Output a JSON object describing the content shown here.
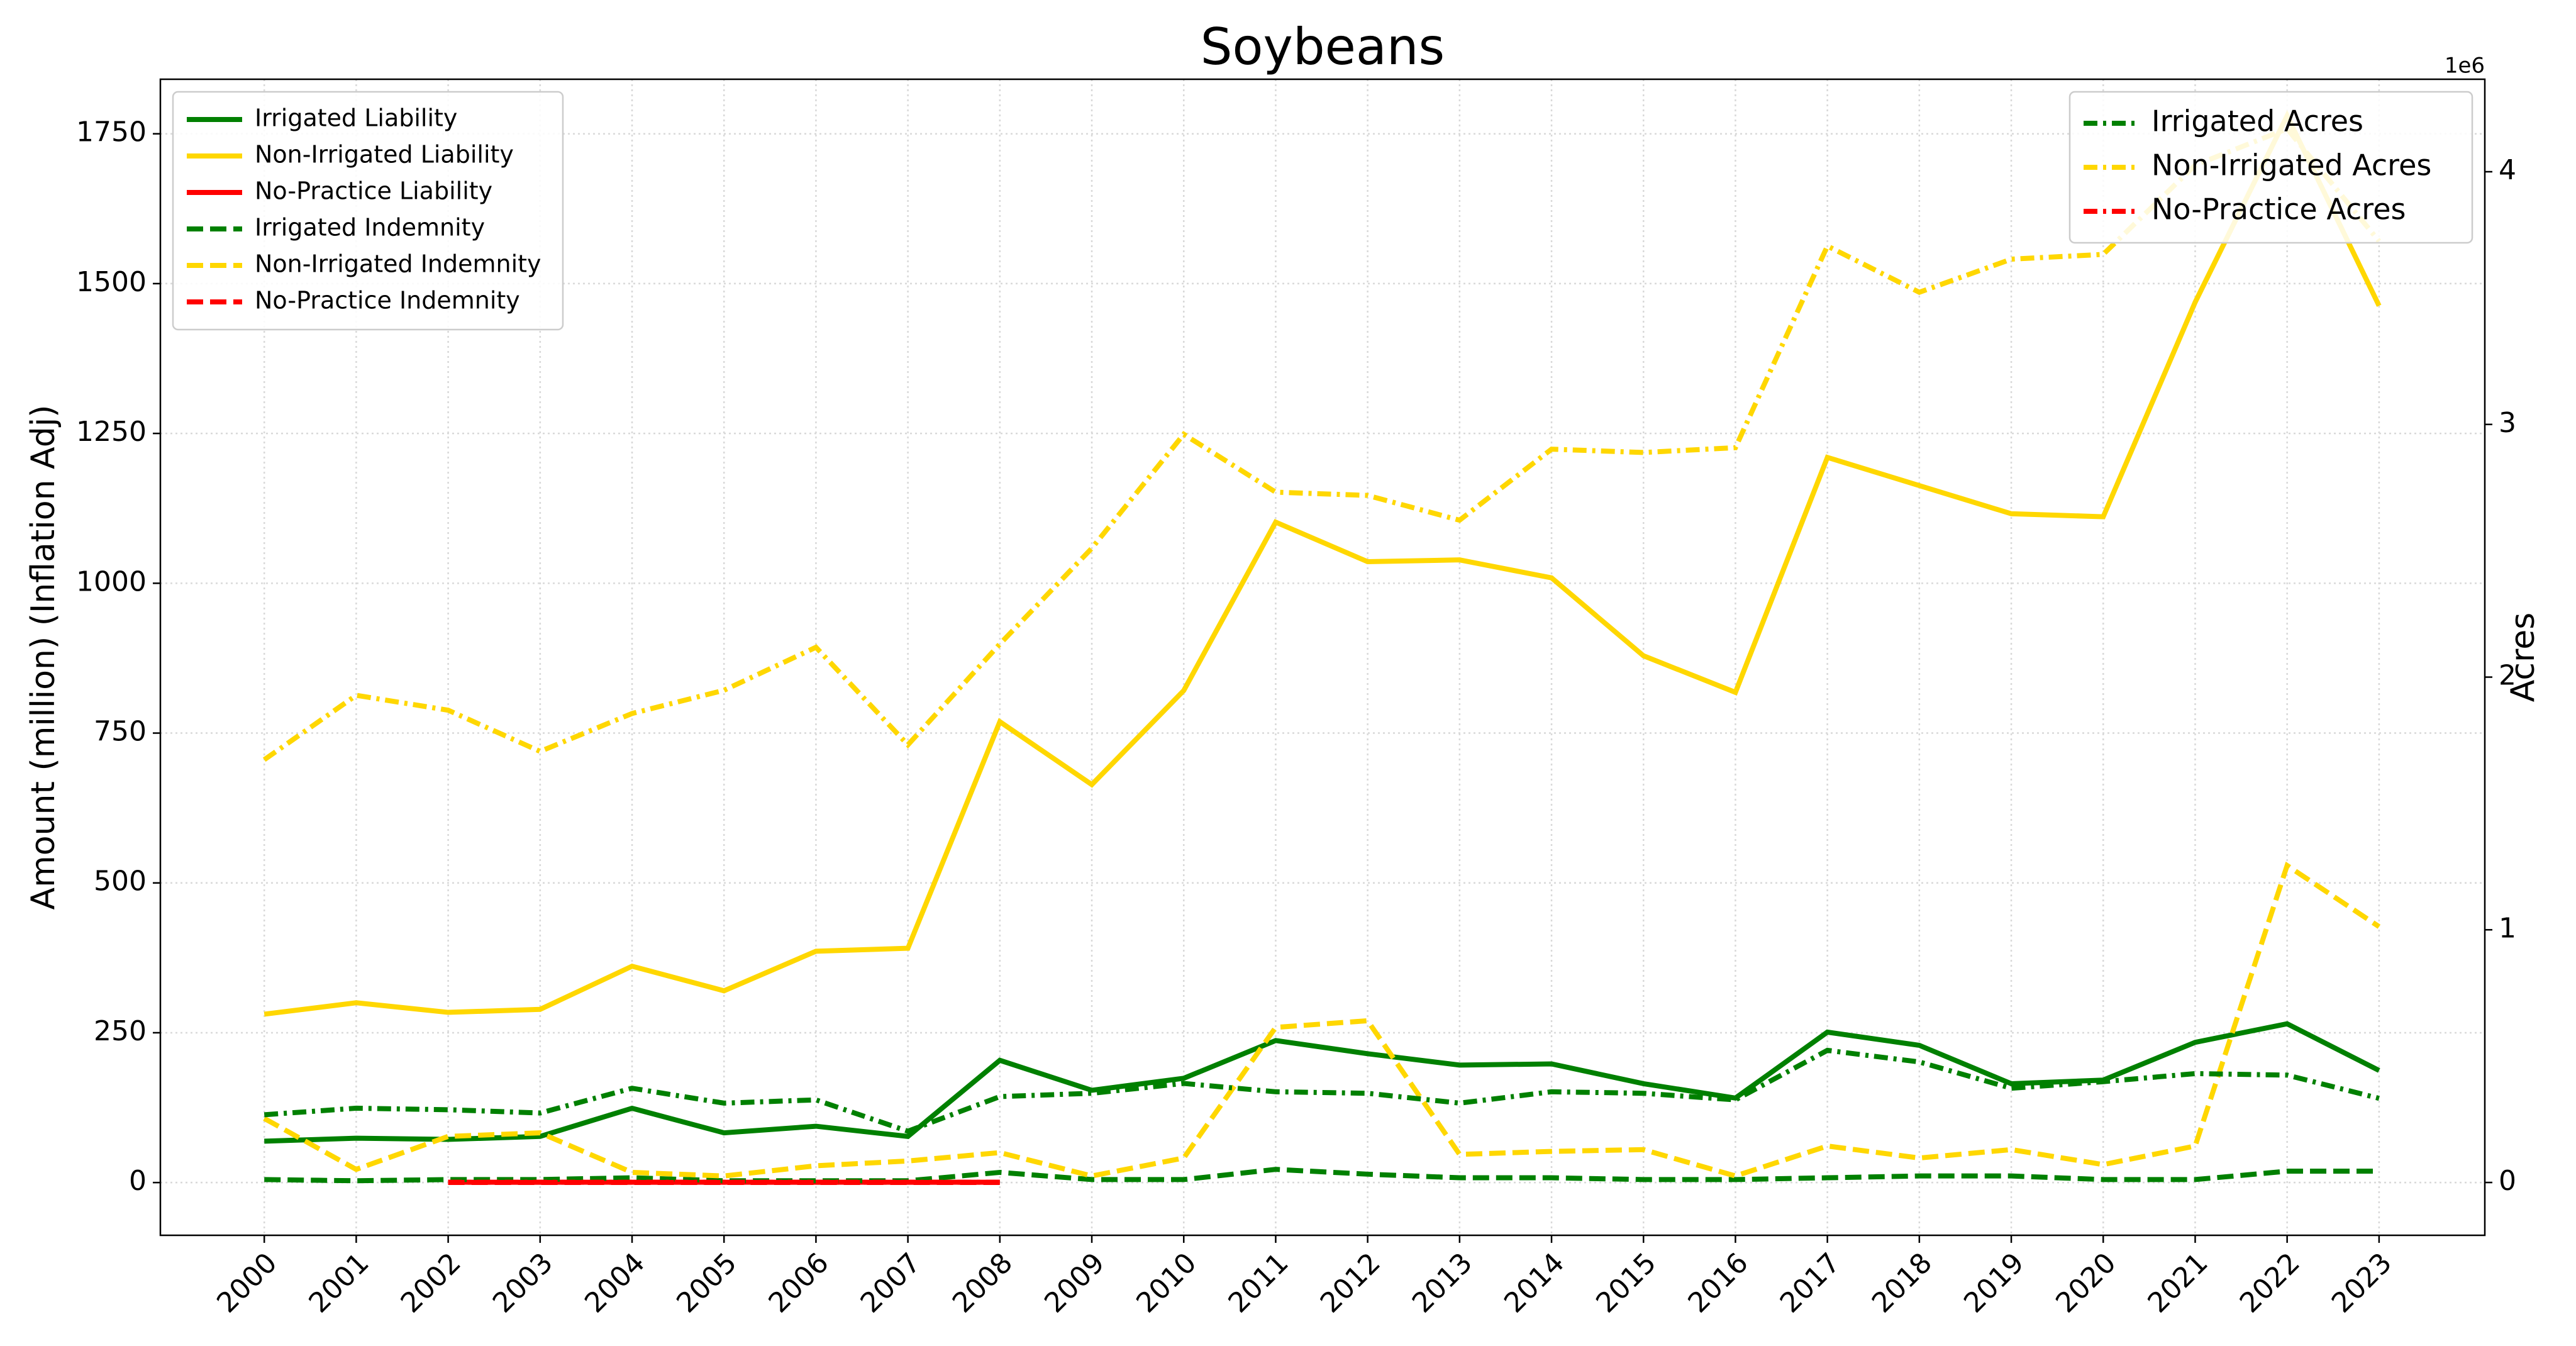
{
  "chart_data": {
    "type": "line",
    "title": "Soybeans",
    "ylabel": "Amount (million) (Inflation Adj)",
    "y2label": "Acres",
    "y2_offset_label": "1e6",
    "x": [
      2000,
      2001,
      2002,
      2003,
      2004,
      2005,
      2006,
      2007,
      2008,
      2009,
      2010,
      2011,
      2012,
      2013,
      2014,
      2015,
      2016,
      2017,
      2018,
      2019,
      2020,
      2021,
      2022,
      2023
    ],
    "xlim": [
      1998.87,
      2024.15
    ],
    "xticks": [
      2000,
      2001,
      2002,
      2003,
      2004,
      2005,
      2006,
      2007,
      2008,
      2009,
      2010,
      2011,
      2012,
      2013,
      2014,
      2015,
      2016,
      2017,
      2018,
      2019,
      2020,
      2021,
      2022,
      2023
    ],
    "ylim": [
      -88,
      1841
    ],
    "yticks": [
      0,
      250,
      500,
      750,
      1000,
      1250,
      1500,
      1750
    ],
    "y2lim": [
      -209000,
      4366000
    ],
    "y2ticks": [
      {
        "value": 0,
        "label": "0"
      },
      {
        "value": 1000000,
        "label": "1"
      },
      {
        "value": 2000000,
        "label": "2"
      },
      {
        "value": 3000000,
        "label": "3"
      },
      {
        "value": 4000000,
        "label": "4"
      }
    ],
    "grid": true,
    "legend": "upper left",
    "legend2": "upper right",
    "series": [
      {
        "name": "Irrigated Liability",
        "color": "green",
        "dash": "solid",
        "values": [
          69,
          74,
          72,
          77,
          124,
          83,
          94,
          77,
          204,
          154,
          174,
          237,
          215,
          196,
          198,
          165,
          141,
          251,
          229,
          165,
          171,
          234,
          265,
          187
        ]
      },
      {
        "name": "Non-Irrigated Liability",
        "color": "gold",
        "dash": "solid",
        "values": [
          281,
          300,
          284,
          289,
          361,
          320,
          386,
          391,
          769,
          664,
          821,
          1102,
          1036,
          1039,
          1009,
          879,
          818,
          1210,
          1163,
          1116,
          1111,
          1469,
          1780,
          1463
        ]
      },
      {
        "name": "No-Practice Liability",
        "color": "red",
        "dash": "solid",
        "values": [
          null,
          null,
          0.5,
          0.5,
          0.5,
          0.5,
          0.5,
          0.5,
          0.5,
          null,
          null,
          null,
          null,
          null,
          null,
          null,
          null,
          null,
          null,
          null,
          null,
          null,
          null,
          null
        ]
      },
      {
        "name": "Irrigated Indemnity",
        "color": "green",
        "dash": "dashed",
        "values": [
          5,
          3,
          5,
          5,
          8,
          3,
          3,
          3,
          17,
          5,
          5,
          22,
          14,
          8,
          8,
          5,
          5,
          8,
          11,
          11,
          5,
          5,
          19,
          19
        ]
      },
      {
        "name": "Non-Irrigated Indemnity",
        "color": "gold",
        "dash": "dashed",
        "values": [
          107,
          22,
          77,
          83,
          17,
          11,
          28,
          36,
          50,
          11,
          41,
          259,
          270,
          47,
          52,
          55,
          11,
          61,
          41,
          55,
          30,
          61,
          529,
          427
        ]
      },
      {
        "name": "No-Practice Indemnity",
        "color": "red",
        "dash": "dashed",
        "values": [
          null,
          null,
          0.2,
          0.2,
          0.2,
          0.2,
          0.2,
          0.2,
          0.2,
          null,
          null,
          null,
          null,
          null,
          null,
          null,
          null,
          null,
          null,
          null,
          null,
          null,
          null,
          null
        ]
      },
      {
        "name": "Irrigated Acres",
        "color": "green",
        "dash": "dashdot",
        "axis": "y2",
        "values": [
          268000,
          294000,
          288000,
          275000,
          373000,
          314000,
          327000,
          203000,
          340000,
          353000,
          392000,
          359000,
          353000,
          314000,
          359000,
          353000,
          327000,
          523000,
          477000,
          373000,
          399000,
          431000,
          425000,
          333000
        ]
      },
      {
        "name": "Non-Irrigated Acres",
        "color": "gold",
        "dash": "dashdot",
        "axis": "y2",
        "values": [
          1673000,
          1928000,
          1869000,
          1706000,
          1856000,
          1948000,
          2118000,
          1732000,
          2131000,
          2510000,
          2961000,
          2732000,
          2719000,
          2621000,
          2902000,
          2889000,
          2908000,
          3706000,
          3523000,
          3654000,
          3673000,
          4026000,
          4170000,
          3725000
        ]
      },
      {
        "name": "No-Practice Acres",
        "color": "red",
        "dash": "dashdot",
        "axis": "y2",
        "values": [
          null,
          null,
          1000,
          1000,
          1000,
          1000,
          1000,
          1000,
          1000,
          null,
          null,
          null,
          null,
          null,
          null,
          null,
          null,
          null,
          null,
          null,
          null,
          null,
          null,
          null
        ]
      }
    ]
  }
}
